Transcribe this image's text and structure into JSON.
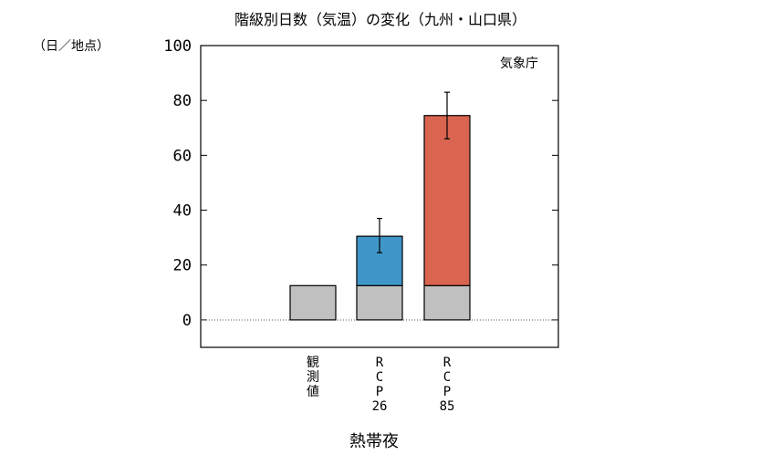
{
  "chart_data": {
    "type": "bar",
    "title": "階級別日数（気温）の変化（九州・山口県）",
    "unit_label": "（日／地点）",
    "credit": "気象庁",
    "xlabel": "熱帯夜",
    "ylim": [
      -10,
      100
    ],
    "yticks": [
      0,
      20,
      40,
      60,
      80,
      100
    ],
    "categories": [
      {
        "id": "obs",
        "lines": [
          "観",
          "測",
          "値"
        ]
      },
      {
        "id": "rcp26",
        "lines": [
          "R",
          "C",
          "P",
          "26"
        ]
      },
      {
        "id": "rcp85",
        "lines": [
          "R",
          "C",
          "P",
          "85"
        ]
      }
    ],
    "series": [
      {
        "values": [
          12.5,
          12.5,
          12.5
        ],
        "color": "#c0c0c0"
      },
      {
        "values": [
          0,
          18.0,
          62.0
        ],
        "color_by_category": [
          "#c0c0c0",
          "#4096c8",
          "#d96450"
        ]
      }
    ],
    "totals": [
      12.5,
      30.5,
      74.5
    ],
    "error_bars": [
      null,
      {
        "low": 24.5,
        "high": 37.0
      },
      {
        "low": 66.0,
        "high": 83.0
      }
    ],
    "zero_line": "dotted",
    "grid": false,
    "legend": "none"
  }
}
